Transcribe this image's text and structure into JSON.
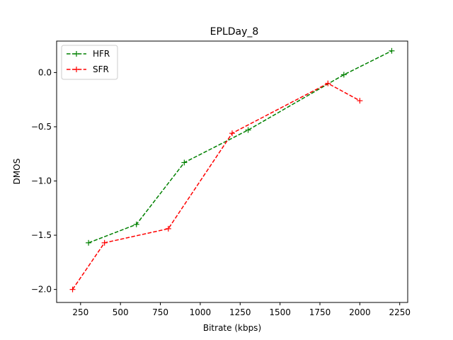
{
  "chart_data": {
    "type": "line",
    "title": "EPLDay_8",
    "xlabel": "Bitrate (kbps)",
    "ylabel": "DMOS",
    "xlim": [
      100,
      2300
    ],
    "ylim": [
      -2.12,
      0.29
    ],
    "xticks": [
      250,
      500,
      750,
      1000,
      1250,
      1500,
      1750,
      2000,
      2250
    ],
    "xtick_labels": [
      "250",
      "500",
      "750",
      "1000",
      "1250",
      "1500",
      "1750",
      "2000",
      "2250"
    ],
    "yticks": [
      -2.0,
      -1.5,
      -1.0,
      -0.5,
      0.0
    ],
    "ytick_labels": [
      "−2.0",
      "−1.5",
      "−1.0",
      "−0.5",
      "0.0"
    ],
    "grid": false,
    "legend": "top-left",
    "series": [
      {
        "name": "HFR",
        "color": "#008000",
        "linestyle": "dashed",
        "marker": "plus",
        "x": [
          300,
          600,
          900,
          1300,
          1900,
          2200
        ],
        "y": [
          -1.57,
          -1.4,
          -0.83,
          -0.53,
          -0.02,
          0.2
        ]
      },
      {
        "name": "SFR",
        "color": "#ff0000",
        "linestyle": "dashed",
        "marker": "plus",
        "x": [
          200,
          400,
          800,
          1200,
          1800,
          2000
        ],
        "y": [
          -2.0,
          -1.57,
          -1.44,
          -0.56,
          -0.1,
          -0.26
        ]
      }
    ]
  }
}
